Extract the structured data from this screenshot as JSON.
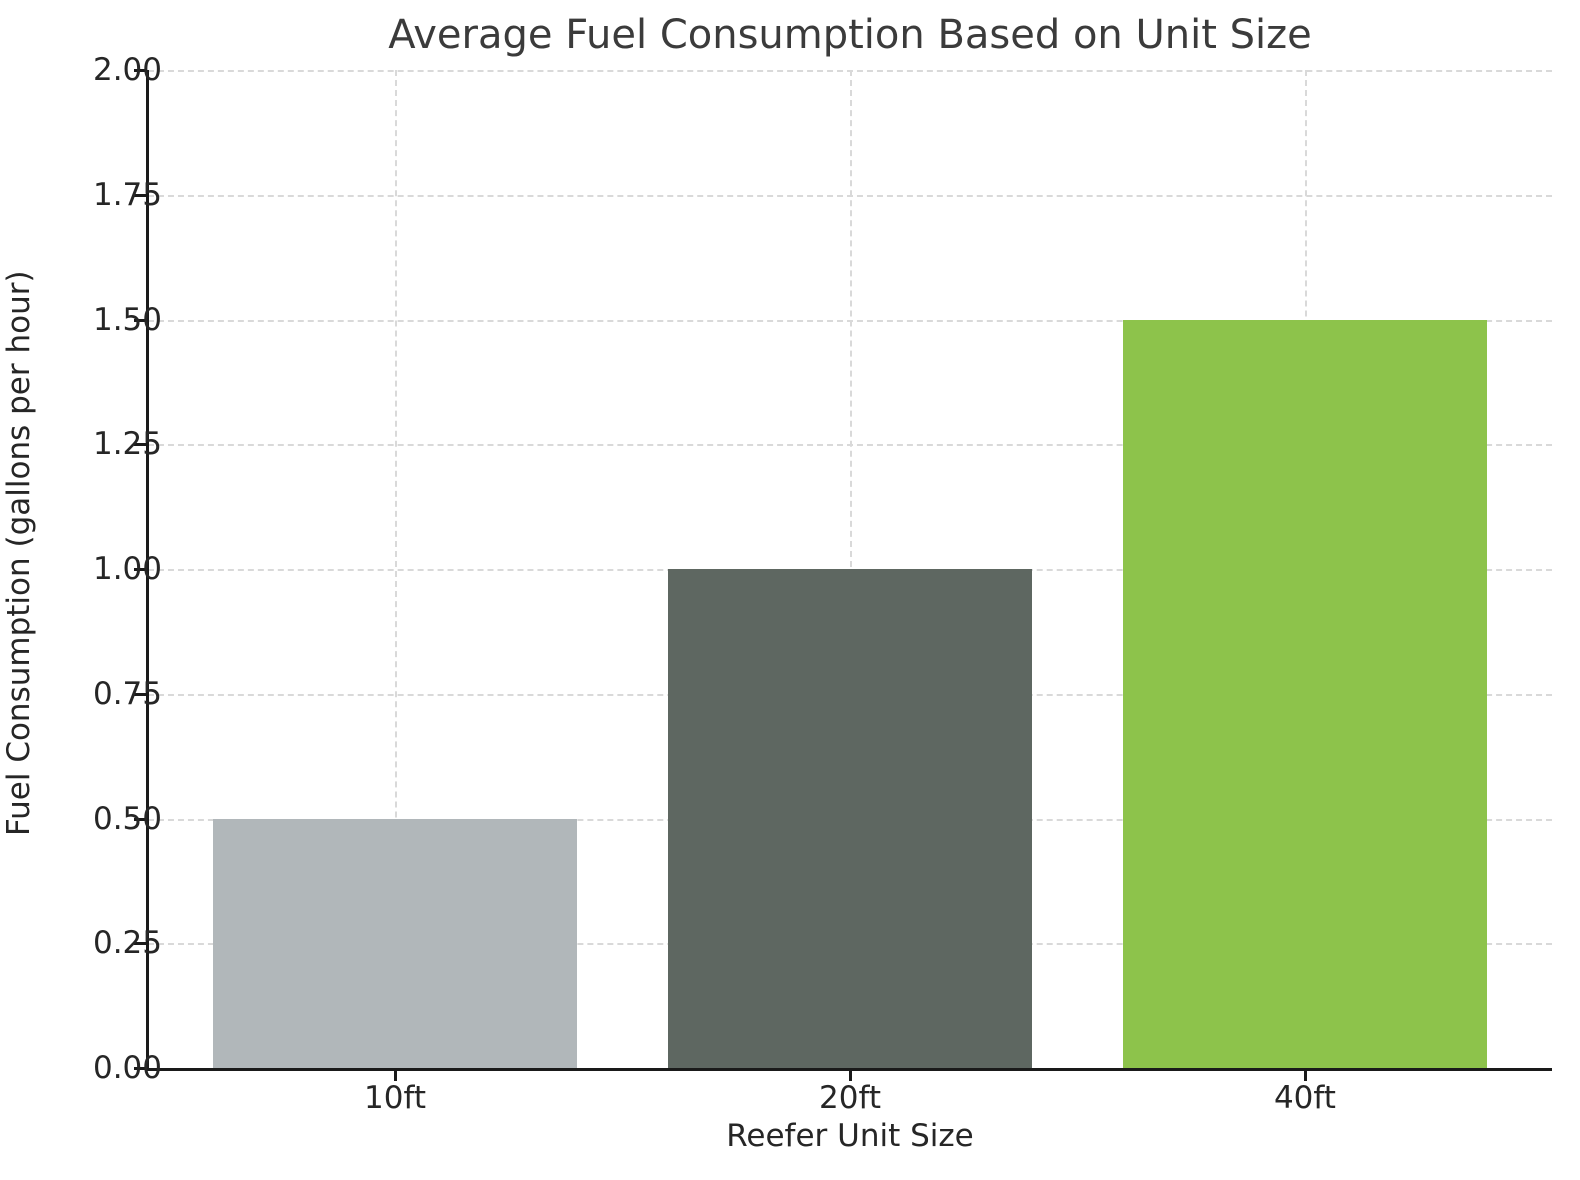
{
  "chart_data": {
    "type": "bar",
    "title": "Average Fuel Consumption Based on Unit Size",
    "xlabel": "Reefer Unit Size",
    "ylabel": "Fuel Consumption (gallons per hour)",
    "categories": [
      "10ft",
      "20ft",
      "40ft"
    ],
    "values": [
      0.5,
      1.0,
      1.5
    ],
    "bar_colors": [
      "#b1b7ba",
      "#5e6761",
      "#8dc34b"
    ],
    "ylim": [
      0,
      2
    ],
    "ytick_step": 0.25,
    "ytick_labels": [
      "0.00",
      "0.25",
      "0.50",
      "0.75",
      "1.00",
      "1.25",
      "1.50",
      "1.75",
      "2.00"
    ],
    "grid": "horizontal and vertical dashed",
    "legend_position": "none",
    "colors": {
      "background": "#ffffff",
      "title_text": "#3b3b3b",
      "tick_text": "#262626",
      "grid_line": "#d9d9d9",
      "spine": "#1a1a1a"
    }
  }
}
